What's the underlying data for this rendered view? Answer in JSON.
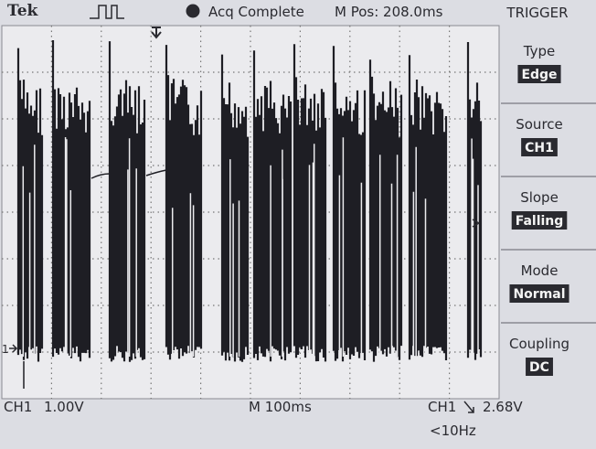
{
  "header": {
    "brand": "Tek",
    "status": "Acq Complete",
    "position": "M Pos: 208.0ms"
  },
  "menu": {
    "title": "TRIGGER",
    "items": [
      {
        "label": "Type",
        "value": "Edge"
      },
      {
        "label": "Source",
        "value": "CH1"
      },
      {
        "label": "Slope",
        "value": "Falling"
      },
      {
        "label": "Mode",
        "value": "Normal"
      },
      {
        "label": "Coupling",
        "value": "DC"
      }
    ]
  },
  "screen": {
    "channel_marker": "1"
  },
  "footer": {
    "channel": "CH1",
    "volts": "1.00V",
    "timebase": "M 100ms",
    "trigger_source": "CH1",
    "trigger_level": "2.68V",
    "frequency": "<10Hz"
  }
}
